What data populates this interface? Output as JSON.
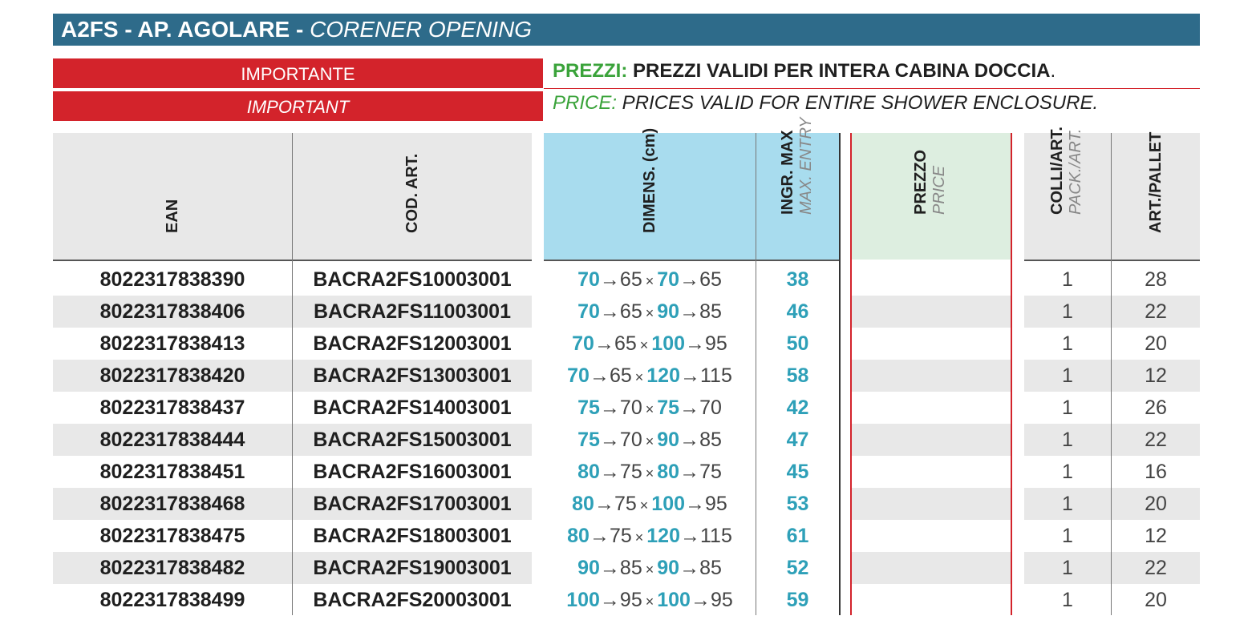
{
  "title": {
    "main": "A2FS - AP. AGOLARE",
    "separator": " - ",
    "english": "CORENER OPENING"
  },
  "important": {
    "it": "IMPORTANTE",
    "en": "IMPORTANT"
  },
  "price_note": {
    "it_key": "PREZZI:",
    "it_value": " PREZZI VALIDI PER INTERA CABINA DOCCIA",
    "en_key": "PRICE:",
    "en_value": " PRICES VALID FOR ENTIRE SHOWER ENCLOSURE."
  },
  "headers": {
    "ean": "EAN",
    "cod": "COD. ART.",
    "dim": "DIMENS. (cm)",
    "ingr": "INGR. MAX",
    "ingr_en": "MAX. ENTRY",
    "prezzo": "PREZZO",
    "prezzo_en": "PRICE",
    "colli": "COLLI/ART.",
    "colli_en": "PACK./ART.",
    "pallet": "ART./PALLET"
  },
  "colors": {
    "title_bg": "#2e6b8a",
    "important_bg": "#d3232b",
    "accent_teal": "#2ea0b8",
    "price_label": "#3aa33a"
  },
  "arrow": "→",
  "times": "×",
  "rows": [
    {
      "ean": "8022317838390",
      "cod": "BACRA2FS10003001",
      "d1": "70",
      "d1r": "65",
      "d2": "70",
      "d2r": "65",
      "ingr": "38",
      "colli": "1",
      "pallet": "28"
    },
    {
      "ean": "8022317838406",
      "cod": "BACRA2FS11003001",
      "d1": "70",
      "d1r": "65",
      "d2": "90",
      "d2r": "85",
      "ingr": "46",
      "colli": "1",
      "pallet": "22"
    },
    {
      "ean": "8022317838413",
      "cod": "BACRA2FS12003001",
      "d1": "70",
      "d1r": "65",
      "d2": "100",
      "d2r": "95",
      "ingr": "50",
      "colli": "1",
      "pallet": "20"
    },
    {
      "ean": "8022317838420",
      "cod": "BACRA2FS13003001",
      "d1": "70",
      "d1r": "65",
      "d2": "120",
      "d2r": "115",
      "ingr": "58",
      "colli": "1",
      "pallet": "12"
    },
    {
      "ean": "8022317838437",
      "cod": "BACRA2FS14003001",
      "d1": "75",
      "d1r": "70",
      "d2": "75",
      "d2r": "70",
      "ingr": "42",
      "colli": "1",
      "pallet": "26"
    },
    {
      "ean": "8022317838444",
      "cod": "BACRA2FS15003001",
      "d1": "75",
      "d1r": "70",
      "d2": "90",
      "d2r": "85",
      "ingr": "47",
      "colli": "1",
      "pallet": "22"
    },
    {
      "ean": "8022317838451",
      "cod": "BACRA2FS16003001",
      "d1": "80",
      "d1r": "75",
      "d2": "80",
      "d2r": "75",
      "ingr": "45",
      "colli": "1",
      "pallet": "16"
    },
    {
      "ean": "8022317838468",
      "cod": "BACRA2FS17003001",
      "d1": "80",
      "d1r": "75",
      "d2": "100",
      "d2r": "95",
      "ingr": "53",
      "colli": "1",
      "pallet": "20"
    },
    {
      "ean": "8022317838475",
      "cod": "BACRA2FS18003001",
      "d1": "80",
      "d1r": "75",
      "d2": "120",
      "d2r": "115",
      "ingr": "61",
      "colli": "1",
      "pallet": "12"
    },
    {
      "ean": "8022317838482",
      "cod": "BACRA2FS19003001",
      "d1": "90",
      "d1r": "85",
      "d2": "90",
      "d2r": "85",
      "ingr": "52",
      "colli": "1",
      "pallet": "22"
    },
    {
      "ean": "8022317838499",
      "cod": "BACRA2FS20003001",
      "d1": "100",
      "d1r": "95",
      "d2": "100",
      "d2r": "95",
      "ingr": "59",
      "colli": "1",
      "pallet": "20"
    }
  ]
}
